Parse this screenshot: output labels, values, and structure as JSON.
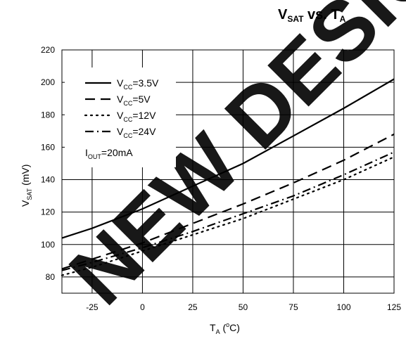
{
  "title": {
    "main": "V",
    "sub1": "SAT",
    "mid": " vs. T",
    "sub2": "A"
  },
  "watermark": "NEW DESIGN",
  "chart_data": {
    "type": "line",
    "x": [
      -40,
      -25,
      0,
      25,
      50,
      75,
      100,
      125
    ],
    "xlim": [
      -40,
      125
    ],
    "ylim": [
      70,
      220
    ],
    "xticks": [
      -25,
      0,
      25,
      50,
      75,
      100,
      125
    ],
    "yticks": [
      80,
      100,
      120,
      140,
      160,
      180,
      200,
      220
    ],
    "grid": true,
    "legend_position": "top-left",
    "xlabel": {
      "main": "T",
      "sub": "A",
      "unit_open": " (",
      "sup": "o",
      "unit_close": "C)"
    },
    "ylabel": {
      "main": "V",
      "sub": "SAT",
      "unit": " (mV)"
    },
    "annotation": {
      "main": "I",
      "sub": "OUT",
      "rest": "=20mA"
    },
    "series": [
      {
        "name": "3.5V",
        "style": "solid",
        "values": [
          104,
          110,
          122,
          136,
          150,
          167,
          184,
          202
        ]
      },
      {
        "name": "5V",
        "style": "dashed",
        "values": [
          85,
          91,
          101,
          113,
          125,
          138,
          152,
          168
        ]
      },
      {
        "name": "12V",
        "style": "dotted",
        "values": [
          81,
          86,
          96,
          106,
          116,
          128,
          140,
          154
        ]
      },
      {
        "name": "24V",
        "style": "dashdot",
        "values": [
          84,
          89,
          98,
          108,
          119,
          130,
          143,
          157
        ]
      }
    ],
    "legend_prefix": "V",
    "legend_prefix_sub": "CC",
    "legend_sep": "="
  }
}
